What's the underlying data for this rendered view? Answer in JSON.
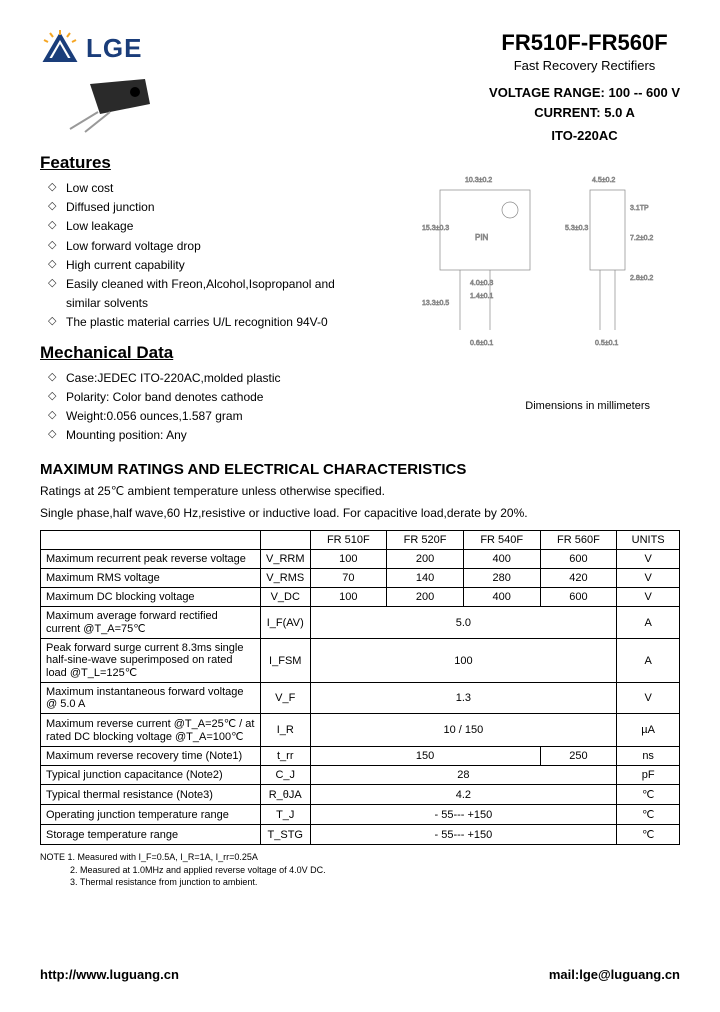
{
  "logo": {
    "text": "LGE"
  },
  "header": {
    "part": "FR510F-FR560F",
    "subtitle": "Fast Recovery Rectifiers",
    "voltage": "VOLTAGE RANGE: 100 -- 600 V",
    "current": "CURRENT: 5.0 A",
    "package": "ITO-220AC"
  },
  "features": {
    "heading": "Features",
    "items": [
      "Low cost",
      "Diffused junction",
      "Low leakage",
      "Low forward voltage drop",
      "High current capability",
      "Easily cleaned with Freon,Alcohol,Isopropanol and similar solvents",
      "The plastic material carries U/L recognition 94V-0"
    ]
  },
  "mechanical": {
    "heading": "Mechanical Data",
    "items": [
      "Case:JEDEC ITO-220AC,molded plastic",
      "Polarity: Color band denotes cathode",
      "Weight:0.056 ounces,1.587 gram",
      "Mounting position: Any"
    ]
  },
  "dim_caption": "Dimensions in millimeters",
  "ratings": {
    "heading": "MAXIMUM RATINGS AND ELECTRICAL CHARACTERISTICS",
    "note1": "Ratings at 25℃ ambient temperature unless otherwise specified.",
    "note2": "Single phase,half wave,60 Hz,resistive or inductive load. For capacitive load,derate by 20%."
  },
  "table": {
    "columns": [
      "",
      "",
      "FR 510F",
      "FR 520F",
      "FR 540F",
      "FR 560F",
      "UNITS"
    ],
    "rows": [
      {
        "param": "Maximum recurrent peak reverse voltage",
        "sym": "V_RRM",
        "vals": [
          "100",
          "200",
          "400",
          "600"
        ],
        "unit": "V",
        "span": false
      },
      {
        "param": "Maximum RMS voltage",
        "sym": "V_RMS",
        "vals": [
          "70",
          "140",
          "280",
          "420"
        ],
        "unit": "V",
        "span": false
      },
      {
        "param": "Maximum DC blocking voltage",
        "sym": "V_DC",
        "vals": [
          "100",
          "200",
          "400",
          "600"
        ],
        "unit": "V",
        "span": false
      },
      {
        "param": "Maximum average forward rectified current @T_A=75℃",
        "sym": "I_F(AV)",
        "vals": [
          "5.0"
        ],
        "unit": "A",
        "span": true
      },
      {
        "param": "Peak forward surge current 8.3ms single half-sine-wave superimposed on rated load @T_L=125℃",
        "sym": "I_FSM",
        "vals": [
          "100"
        ],
        "unit": "A",
        "span": true
      },
      {
        "param": "Maximum instantaneous forward voltage @ 5.0 A",
        "sym": "V_F",
        "vals": [
          "1.3"
        ],
        "unit": "V",
        "span": true
      },
      {
        "param": "Maximum reverse current @T_A=25℃ / at rated DC blocking voltage @T_A=100℃",
        "sym": "I_R",
        "vals": [
          "10 / 150"
        ],
        "unit": "µA",
        "span": true
      },
      {
        "param": "Maximum reverse recovery time (Note1)",
        "sym": "t_rr",
        "vals": [
          "150",
          "",
          "",
          "250"
        ],
        "unit": "ns",
        "span": false,
        "custom": true
      },
      {
        "param": "Typical junction capacitance (Note2)",
        "sym": "C_J",
        "vals": [
          "28"
        ],
        "unit": "pF",
        "span": true
      },
      {
        "param": "Typical thermal resistance (Note3)",
        "sym": "R_θJA",
        "vals": [
          "4.2"
        ],
        "unit": "℃",
        "span": true
      },
      {
        "param": "Operating junction temperature range",
        "sym": "T_J",
        "vals": [
          "- 55--- +150"
        ],
        "unit": "℃",
        "span": true
      },
      {
        "param": "Storage temperature range",
        "sym": "T_STG",
        "vals": [
          "- 55--- +150"
        ],
        "unit": "℃",
        "span": true
      }
    ]
  },
  "notes": {
    "n1": "NOTE 1. Measured with I_F=0.5A, I_R=1A, I_rr=0.25A",
    "n2": "2. Measured at 1.0MHz and applied reverse voltage of 4.0V DC.",
    "n3": "3. Thermal resistance from junction to ambient."
  },
  "footer": {
    "url": "http://www.luguang.cn",
    "mail": "mail:lge@luguang.cn"
  },
  "colors": {
    "logo_blue": "#1a3d7a",
    "logo_orange": "#f5a623"
  }
}
